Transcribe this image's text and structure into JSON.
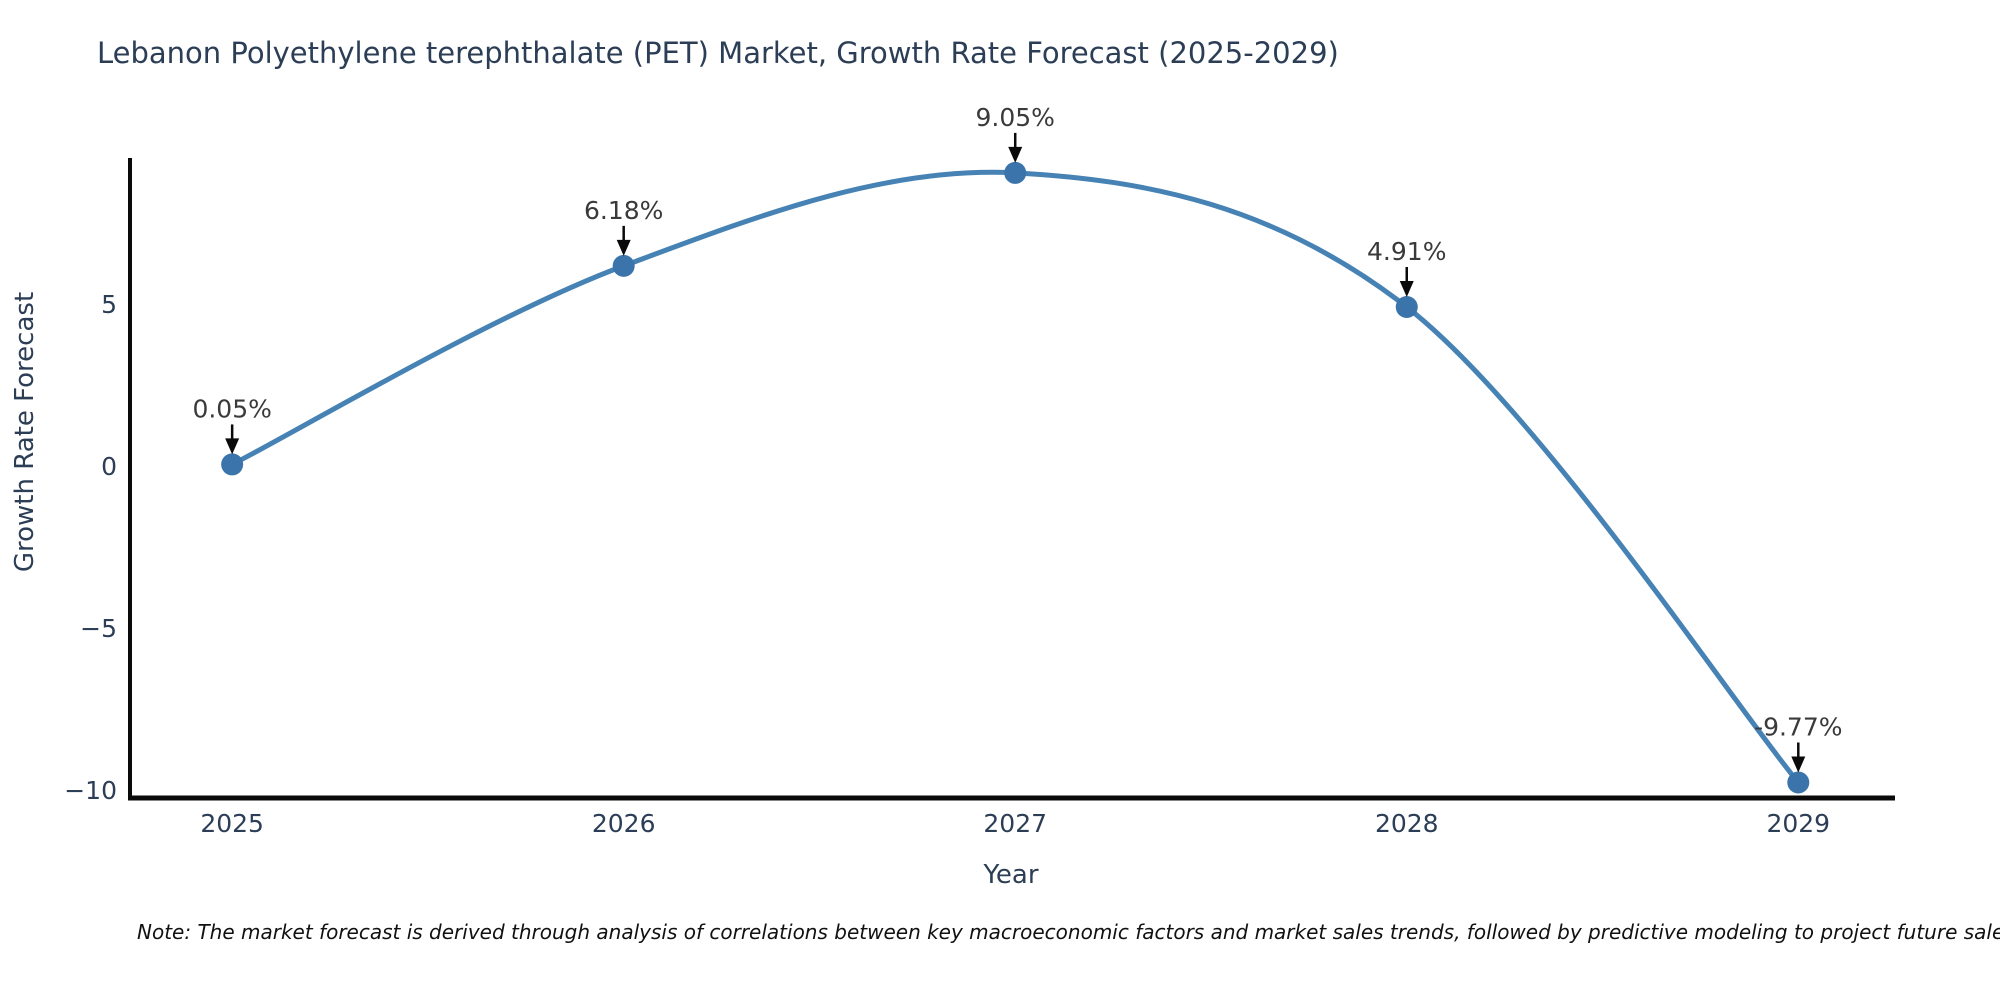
{
  "chart_data": {
    "type": "line",
    "line_shape": "spline",
    "title": "Lebanon Polyethylene terephthalate (PET) Market, Growth Rate Forecast (2025-2029)",
    "xlabel": "Year",
    "ylabel": "Growth Rate Forecast",
    "x": [
      2025,
      2026,
      2027,
      2028,
      2029
    ],
    "series": [
      {
        "name": "Growth Rate Forecast",
        "values": [
          0.05,
          6.18,
          9.05,
          4.91,
          -9.77
        ]
      }
    ],
    "point_labels": [
      "0.05%",
      "6.18%",
      "9.05%",
      "4.91%",
      "-9.77%"
    ],
    "xtick_labels": [
      "2025",
      "2026",
      "2027",
      "2028",
      "2029"
    ],
    "yticks": [
      {
        "value": 5,
        "label": "5"
      },
      {
        "value": 0,
        "label": "0"
      },
      {
        "value": -5,
        "label": "−5"
      },
      {
        "value": -10,
        "label": "−10"
      }
    ],
    "xlim": [
      2024.734,
      2029.247
    ],
    "ylim": [
      -10.31,
      9.51
    ],
    "grid": false,
    "legend": "none",
    "colors": {
      "line": "#4682b4",
      "marker": "#3a74ab",
      "spine": "#0a0a0a",
      "arrow": "#0a0a0a",
      "tick_text": "#2c3e56",
      "annotation_text": "#3a3a3a"
    },
    "note": "Note: The market forecast is derived through analysis of correlations between key macroeconomic factors and market sales trends, followed by predictive modeling to project future sales"
  }
}
